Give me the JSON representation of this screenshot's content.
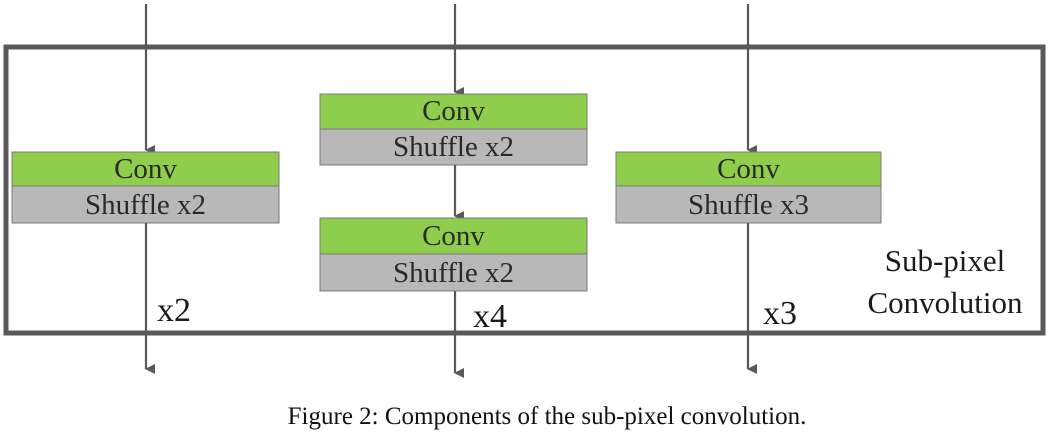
{
  "colors": {
    "conv_fill": "#8fce4c",
    "shuffle_fill": "#b8b8b8",
    "frame_stroke": "#595959",
    "arrow_stroke": "#595959"
  },
  "module": {
    "label_line1": "Sub-pixel",
    "label_line2": "Convolution"
  },
  "branches": [
    {
      "blocks": [
        {
          "conv_label": "Conv",
          "shuffle_label": "Shuffle x2"
        }
      ],
      "output_factor": "x2"
    },
    {
      "blocks": [
        {
          "conv_label": "Conv",
          "shuffle_label": "Shuffle  x2"
        },
        {
          "conv_label": "Conv",
          "shuffle_label": "Shuffle  x2"
        }
      ],
      "output_factor": "x4"
    },
    {
      "blocks": [
        {
          "conv_label": "Conv",
          "shuffle_label": "Shuffle x3"
        }
      ],
      "output_factor": "x3"
    }
  ],
  "caption": "Figure 2: Components of the sub-pixel convolution."
}
